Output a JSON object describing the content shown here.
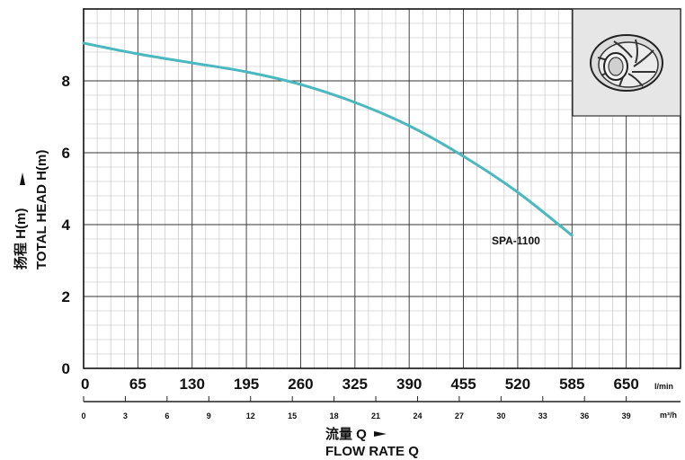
{
  "chart_data": {
    "type": "line",
    "title": "",
    "xlabel_cn": "流量 Q",
    "xlabel_en": "FLOW RATE Q",
    "ylabel_cn": "扬程 H(m)",
    "ylabel_en": "TOTAL HEAD H(m)",
    "x_unit_primary": "l/min",
    "x_unit_secondary": "m³/h",
    "xlim": [
      0,
      715
    ],
    "ylim": [
      0,
      10
    ],
    "x_ticks_primary": [
      "0",
      "65",
      "130",
      "195",
      "260",
      "325",
      "390",
      "455",
      "520",
      "585",
      "650"
    ],
    "x_ticks_secondary": [
      "0",
      "3",
      "6",
      "9",
      "12",
      "15",
      "18",
      "21",
      "24",
      "27",
      "30",
      "33",
      "36",
      "39"
    ],
    "y_ticks": [
      "0",
      "2",
      "4",
      "6",
      "8"
    ],
    "grid": true,
    "series": [
      {
        "name": "SPA-1100",
        "color": "#4bb7bf",
        "x": [
          0,
          65,
          130,
          195,
          260,
          325,
          390,
          455,
          520,
          585
        ],
        "y": [
          9.05,
          8.75,
          8.5,
          8.25,
          7.9,
          7.4,
          6.75,
          5.9,
          4.9,
          3.7
        ]
      }
    ]
  },
  "inset": {
    "icon": "impeller-icon",
    "background": "#e6e6e6"
  },
  "colors": {
    "line": "#4bb7bf",
    "grid_major": "#333333",
    "grid_minor": "#bdbdbd"
  }
}
